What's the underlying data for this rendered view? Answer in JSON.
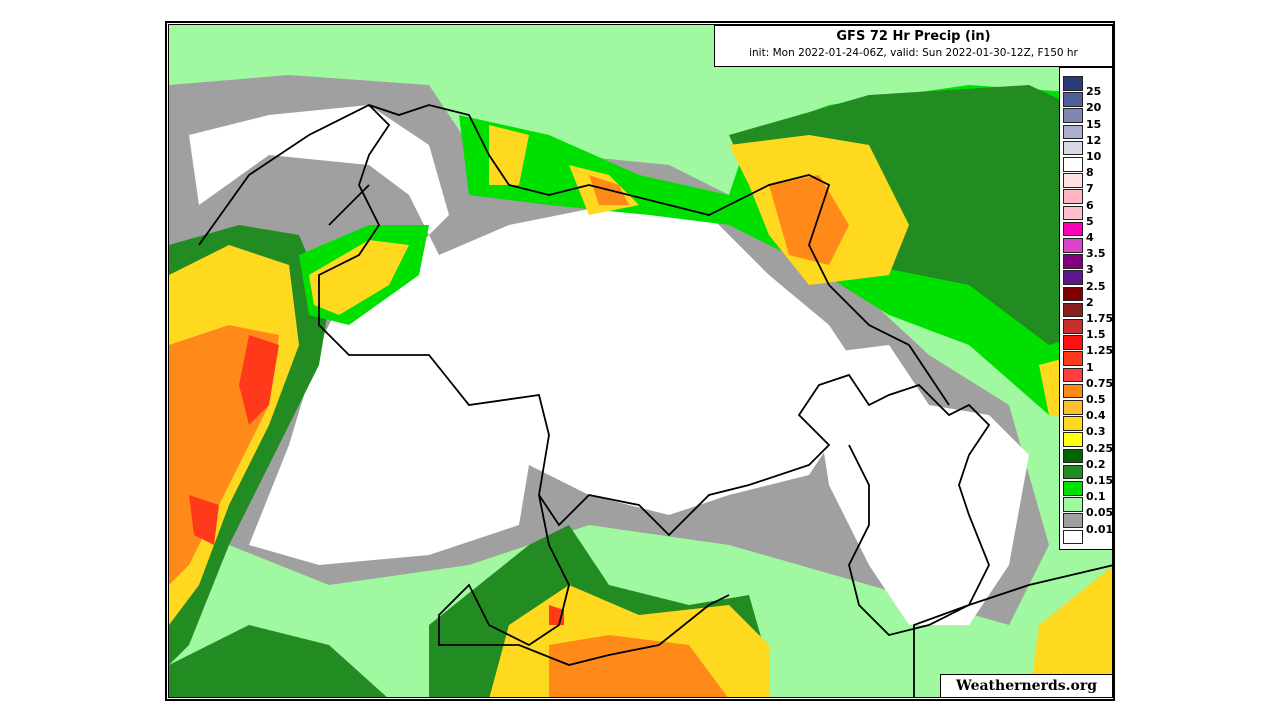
{
  "header": {
    "title": "GFS 72 Hr Precip (in)",
    "subtitle": "init: Mon 2022-01-24-06Z, valid: Sun 2022-01-30-12Z, F150 hr"
  },
  "legend": {
    "unit": "in",
    "colors": [
      "#2b3a78",
      "#4f5f99",
      "#7f88b3",
      "#a9afcc",
      "#d6d9e6",
      "#ffffff",
      "#fde0e0",
      "#ffb6c1",
      "#ffc0cb",
      "#ff00b8",
      "#dd44cc",
      "#800080",
      "#5a1a8a",
      "#800000",
      "#8b2020",
      "#c83030",
      "#ff1010",
      "#ff3a1a",
      "#ff4040",
      "#ff8a1a",
      "#ffc030",
      "#ffd820",
      "#ffff10",
      "#006400",
      "#228b22",
      "#00e000",
      "#a0f8a0",
      "#a0a0a0",
      "#ffffff"
    ],
    "labels": [
      "25",
      "20",
      "15",
      "12",
      "10",
      "8",
      "7",
      "6",
      "5",
      "4",
      "3.5",
      "3",
      "2.5",
      "2",
      "1.75",
      "1.5",
      "1.25",
      "1",
      "0.75",
      "0.5",
      "0.4",
      "0.3",
      "0.25",
      "0.2",
      "0.15",
      "0.1",
      "0.05",
      "0.01"
    ]
  },
  "credit": "Weathernerds.org"
}
